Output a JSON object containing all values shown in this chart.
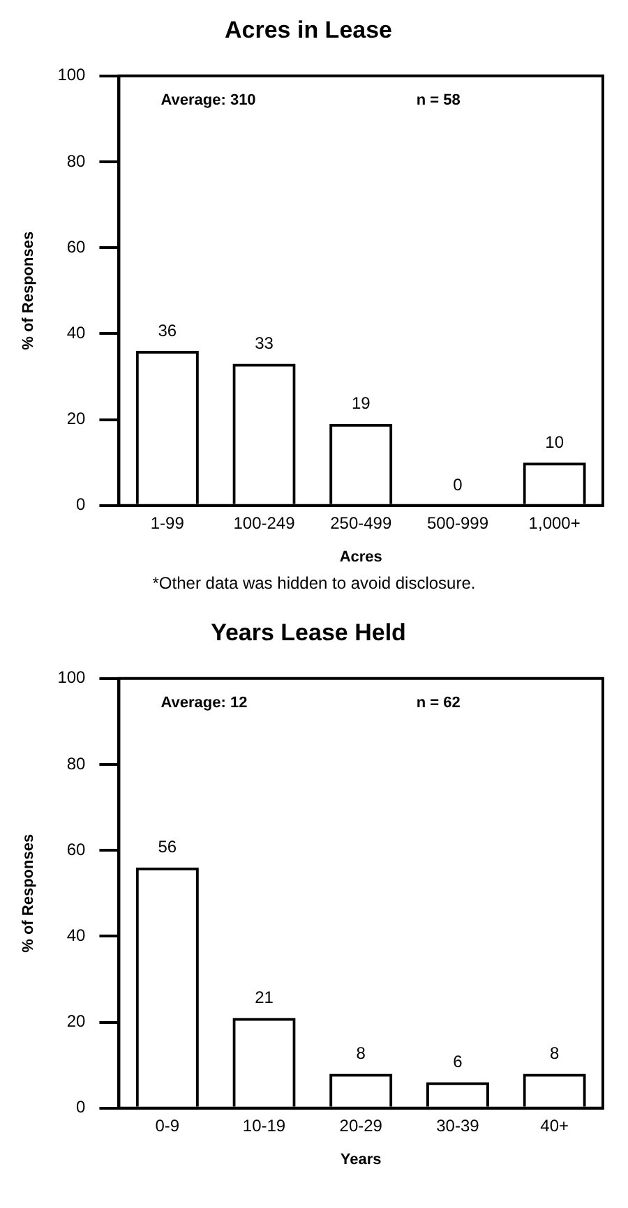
{
  "chart_data": [
    {
      "type": "bar",
      "title": "Acres in Lease",
      "xlabel": "Acres",
      "ylabel": "% of Responses",
      "categories": [
        "1-99",
        "100-249",
        "250-499",
        "500-999",
        "1,000+"
      ],
      "values": [
        36,
        33,
        19,
        0,
        10
      ],
      "color": "#000000",
      "ylim": [
        0,
        100
      ],
      "yticks": [
        0,
        20,
        40,
        60,
        80,
        100
      ],
      "grid": false,
      "legend": false,
      "data_labels": true,
      "annotations": [
        "Average: 310",
        "n = 58",
        "*Other data was hidden to avoid disclosure."
      ]
    },
    {
      "type": "bar",
      "title": "Years Lease Held",
      "xlabel": "Years",
      "ylabel": "% of Responses",
      "categories": [
        "0-9",
        "10-19",
        "20-29",
        "30-39",
        "40+"
      ],
      "values": [
        56,
        21,
        8,
        6,
        8
      ],
      "color": "#000000",
      "ylim": [
        0,
        100
      ],
      "yticks": [
        0,
        20,
        40,
        60,
        80,
        100
      ],
      "grid": false,
      "legend": false,
      "data_labels": true,
      "annotations": [
        "Average: 12",
        "n = 62"
      ]
    }
  ]
}
